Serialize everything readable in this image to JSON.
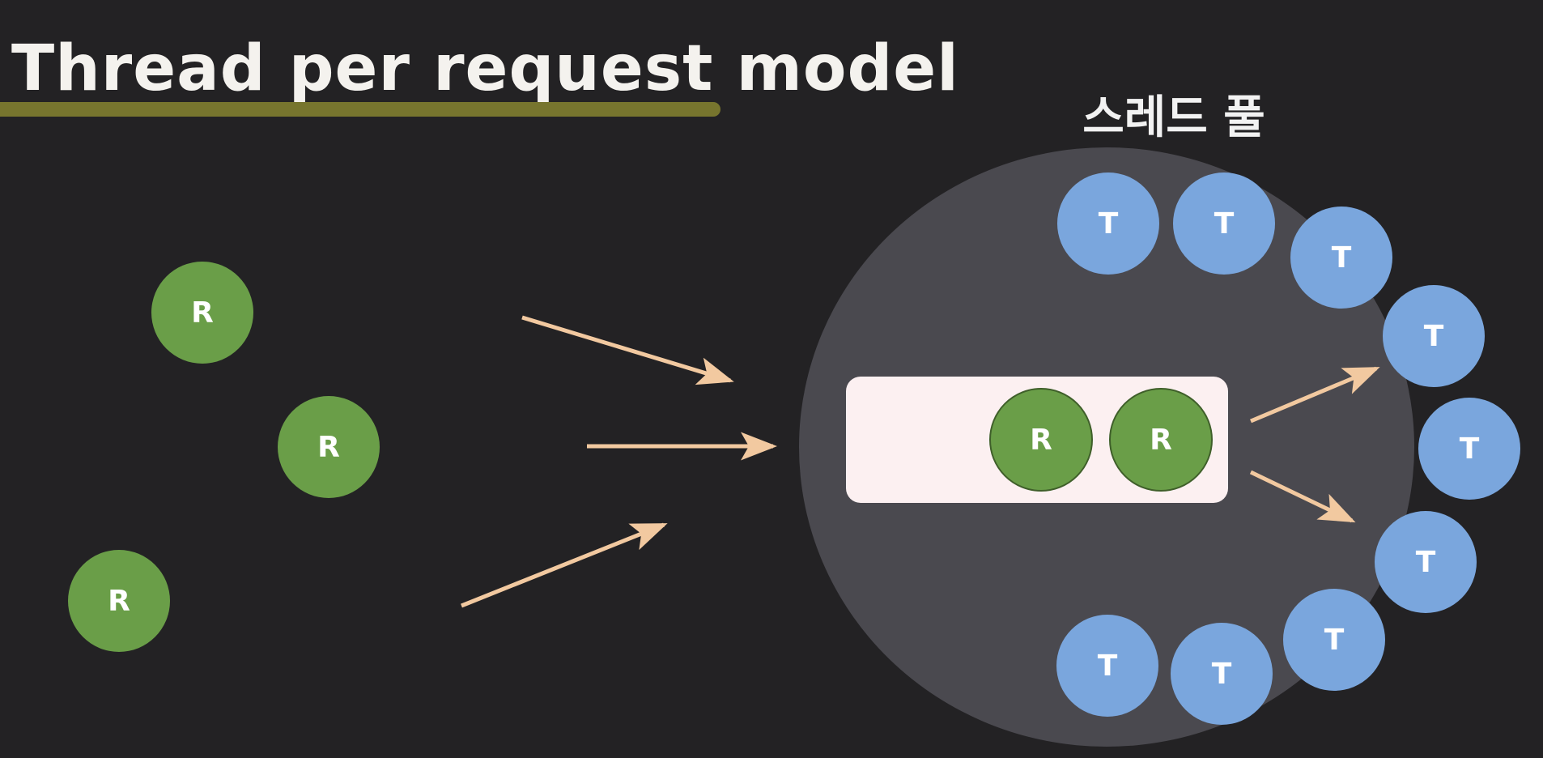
{
  "title": "Thread per request model",
  "pool_label": "스레드 풀",
  "request_label": "R",
  "thread_label": "T",
  "colors": {
    "background": "#232224",
    "underline": "#77752e",
    "pool": "#4a494f",
    "queue": "#fcf0f1",
    "request": "#6a9e48",
    "thread": "#7aa6dd",
    "arrow": "#f2c9a0"
  }
}
